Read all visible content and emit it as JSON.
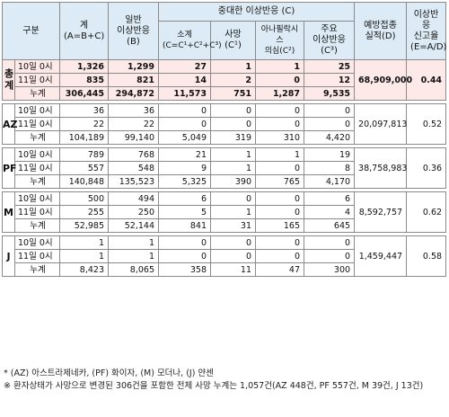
{
  "headers": {
    "col_category": "구분",
    "col_total": "계\n(A=B+C)",
    "col_general": "일반\n이상반응\n(B)",
    "col_serious_group": "중대한 이상반응 (C)",
    "col_subtotal": "소계\n(C=C¹+C²+C³)",
    "col_death": "사망\n(C¹)",
    "col_anaphylaxis": "아나필락시스\n의심(C²)",
    "col_major": "주요\n이상반응\n(C³)",
    "col_vaccinated": "예방접종\n실적(D)",
    "col_rate": "이상반응\n신고율\n(E=A/D)"
  },
  "groups": [
    {
      "name": "총계",
      "vertical": true,
      "highlight": true,
      "vaccinated": "68,909,000",
      "rate": "0.44",
      "rows": [
        {
          "label": "10일 0시",
          "total": "1,326",
          "general": "1,299",
          "subtotal": "27",
          "death": "1",
          "anaphylaxis": "1",
          "major": "25"
        },
        {
          "label": "11일 0시",
          "total": "835",
          "general": "821",
          "subtotal": "14",
          "death": "2",
          "anaphylaxis": "0",
          "major": "12"
        },
        {
          "label": "누계",
          "total": "306,445",
          "general": "294,872",
          "subtotal": "11,573",
          "death": "751",
          "anaphylaxis": "1,287",
          "major": "9,535"
        }
      ]
    },
    {
      "name": "AZ",
      "vertical": false,
      "highlight": false,
      "vaccinated": "20,097,813",
      "rate": "0.52",
      "rows": [
        {
          "label": "10일 0시",
          "total": "36",
          "general": "36",
          "subtotal": "0",
          "death": "0",
          "anaphylaxis": "0",
          "major": "0"
        },
        {
          "label": "11일 0시",
          "total": "22",
          "general": "22",
          "subtotal": "0",
          "death": "0",
          "anaphylaxis": "0",
          "major": "0"
        },
        {
          "label": "누계",
          "total": "104,189",
          "general": "99,140",
          "subtotal": "5,049",
          "death": "319",
          "anaphylaxis": "310",
          "major": "4,420"
        }
      ]
    },
    {
      "name": "PF",
      "vertical": false,
      "highlight": false,
      "vaccinated": "38,758,983",
      "rate": "0.36",
      "rows": [
        {
          "label": "10일 0시",
          "total": "789",
          "general": "768",
          "subtotal": "21",
          "death": "1",
          "anaphylaxis": "1",
          "major": "19"
        },
        {
          "label": "11일 0시",
          "total": "557",
          "general": "548",
          "subtotal": "9",
          "death": "1",
          "anaphylaxis": "0",
          "major": "8"
        },
        {
          "label": "누계",
          "total": "140,848",
          "general": "135,523",
          "subtotal": "5,325",
          "death": "390",
          "anaphylaxis": "765",
          "major": "4,170"
        }
      ]
    },
    {
      "name": "M",
      "vertical": false,
      "highlight": false,
      "vaccinated": "8,592,757",
      "rate": "0.62",
      "rows": [
        {
          "label": "10일 0시",
          "total": "500",
          "general": "494",
          "subtotal": "6",
          "death": "0",
          "anaphylaxis": "0",
          "major": "6"
        },
        {
          "label": "11일 0시",
          "total": "255",
          "general": "250",
          "subtotal": "5",
          "death": "1",
          "anaphylaxis": "0",
          "major": "4"
        },
        {
          "label": "누계",
          "total": "52,985",
          "general": "52,144",
          "subtotal": "841",
          "death": "31",
          "anaphylaxis": "165",
          "major": "645"
        }
      ]
    },
    {
      "name": "J",
      "vertical": false,
      "highlight": false,
      "vaccinated": "1,459,447",
      "rate": "0.58",
      "rows": [
        {
          "label": "10일 0시",
          "total": "1",
          "general": "1",
          "subtotal": "0",
          "death": "0",
          "anaphylaxis": "0",
          "major": "0"
        },
        {
          "label": "11일 0시",
          "total": "1",
          "general": "1",
          "subtotal": "0",
          "death": "0",
          "anaphylaxis": "0",
          "major": "0"
        },
        {
          "label": "누계",
          "total": "8,423",
          "general": "8,065",
          "subtotal": "358",
          "death": "11",
          "anaphylaxis": "47",
          "major": "300"
        }
      ]
    }
  ],
  "footnotes": [
    "* (AZ) 아스트라제네카, (PF) 화이자, (M) 모더나, (J) 얀센",
    "※ 환자상태가 사망으로 변경된 306건을 포함한 전체 사망 누계는 1,057건(AZ 448건, PF 557건, M 39건, J 13건)"
  ]
}
